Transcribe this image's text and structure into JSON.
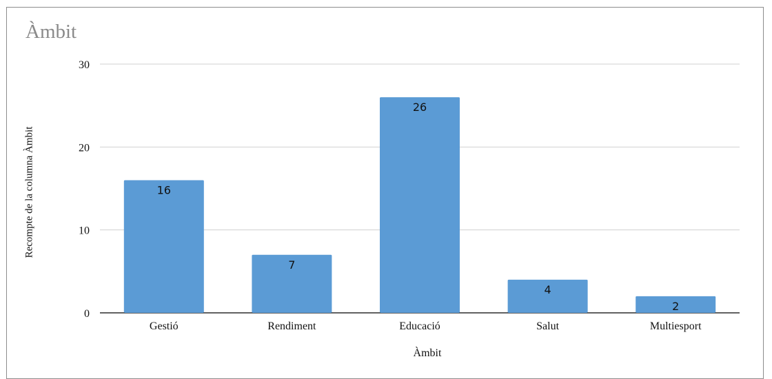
{
  "chart_data": {
    "type": "bar",
    "title": "Àmbit",
    "xlabel": "Àmbit",
    "ylabel": "Recompte de la columna Àmbit",
    "categories": [
      "Gestió",
      "Rendiment",
      "Educació",
      "Salut",
      "Multiesport"
    ],
    "values": [
      16,
      7,
      26,
      4,
      2
    ],
    "data_labels": [
      "16",
      "7",
      "26",
      "4",
      "2"
    ],
    "yticks": [
      "0",
      "10",
      "20",
      "30"
    ],
    "ylim": [
      0,
      30
    ],
    "grid": true,
    "legend": "none",
    "bar_color": "#5b9bd5",
    "grid_color": "#d0d0d0",
    "title_color": "#8a8a8a"
  }
}
